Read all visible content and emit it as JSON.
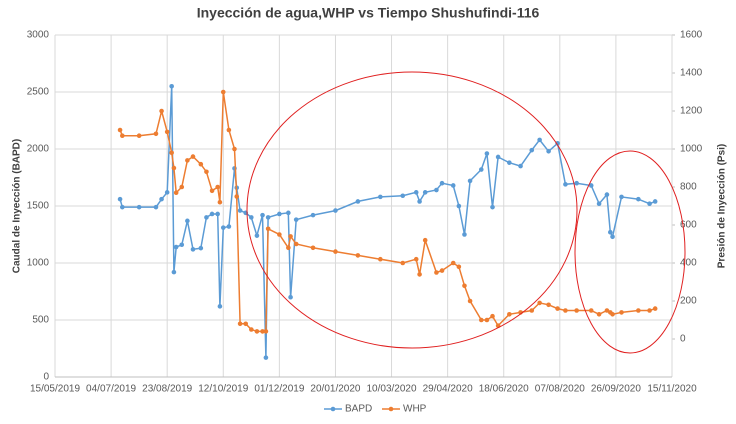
{
  "chart_data": {
    "type": "line",
    "title": "Inyección de agua,WHP vs Tiempo Shushufindi-116",
    "y_label": "Caudal de Inyección (BAPD)",
    "y2_label": "Presión de Inyección (Psi)",
    "x": [
      "2019-07-12",
      "2019-07-14",
      "2019-07-29",
      "2019-08-13",
      "2019-08-18",
      "2019-08-23",
      "2019-08-27",
      "2019-08-29",
      "2019-08-31",
      "2019-09-05",
      "2019-09-10",
      "2019-09-15",
      "2019-09-22",
      "2019-09-27",
      "2019-10-02",
      "2019-10-07",
      "2019-10-09",
      "2019-10-12",
      "2019-10-17",
      "2019-10-22",
      "2019-10-24",
      "2019-10-27",
      "2019-11-01",
      "2019-11-06",
      "2019-11-11",
      "2019-11-16",
      "2019-11-19",
      "2019-11-21",
      "2019-12-01",
      "2019-12-09",
      "2019-12-11",
      "2019-12-16",
      "2019-12-31",
      "2020-01-20",
      "2020-02-09",
      "2020-02-29",
      "2020-03-20",
      "2020-04-01",
      "2020-04-04",
      "2020-04-09",
      "2020-04-19",
      "2020-04-24",
      "2020-05-04",
      "2020-05-09",
      "2020-05-14",
      "2020-05-19",
      "2020-05-29",
      "2020-06-03",
      "2020-06-08",
      "2020-06-13",
      "2020-06-23",
      "2020-07-03",
      "2020-07-13",
      "2020-07-20",
      "2020-07-28",
      "2020-08-05",
      "2020-08-12",
      "2020-08-22",
      "2020-09-04",
      "2020-09-11",
      "2020-09-18",
      "2020-09-21",
      "2020-09-23",
      "2020-10-01",
      "2020-10-16",
      "2020-10-26",
      "2020-10-31"
    ],
    "series": [
      {
        "name": "BAPD",
        "color": "#5b9bd5",
        "values": [
          1560,
          1490,
          1490,
          1490,
          1560,
          1620,
          2550,
          920,
          1140,
          1160,
          1370,
          1120,
          1130,
          1400,
          1430,
          1430,
          620,
          1310,
          1320,
          1830,
          1660,
          1460,
          1440,
          1400,
          1240,
          1420,
          170,
          1400,
          1430,
          1440,
          700,
          1380,
          1420,
          1460,
          1540,
          1580,
          1590,
          1620,
          1540,
          1620,
          1640,
          1700,
          1680,
          1500,
          1250,
          1720,
          1820,
          1960,
          1490,
          1930,
          1880,
          1850,
          1990,
          2080,
          1980,
          2050,
          1690,
          1700,
          1680,
          1520,
          1600,
          1270,
          1230,
          1580,
          1560,
          1520,
          1540
        ]
      },
      {
        "name": "WHP",
        "color": "#ed7d31",
        "axis": "y2",
        "values": [
          1100,
          1070,
          1070,
          1080,
          1200,
          1090,
          980,
          900,
          770,
          800,
          940,
          960,
          920,
          880,
          780,
          800,
          720,
          1300,
          1100,
          1000,
          750,
          80,
          80,
          50,
          40,
          40,
          40,
          580,
          550,
          480,
          540,
          500,
          480,
          460,
          440,
          420,
          400,
          420,
          340,
          520,
          350,
          360,
          400,
          380,
          280,
          200,
          100,
          100,
          120,
          70,
          130,
          140,
          150,
          190,
          180,
          160,
          150,
          150,
          150,
          130,
          150,
          140,
          130,
          140,
          150,
          150,
          160
        ]
      }
    ],
    "xlim": [
      "2019-05-15",
      "2020-11-15"
    ],
    "xticks": [
      {
        "value": "2019-05-15",
        "label": "15/05/2019"
      },
      {
        "value": "2019-07-04",
        "label": "04/07/2019"
      },
      {
        "value": "2019-08-23",
        "label": "23/08/2019"
      },
      {
        "value": "2019-10-12",
        "label": "12/10/2019"
      },
      {
        "value": "2019-12-01",
        "label": "01/12/2019"
      },
      {
        "value": "2020-01-20",
        "label": "20/01/2020"
      },
      {
        "value": "2020-03-10",
        "label": "10/03/2020"
      },
      {
        "value": "2020-04-29",
        "label": "29/04/2020"
      },
      {
        "value": "2020-06-18",
        "label": "18/06/2020"
      },
      {
        "value": "2020-08-07",
        "label": "07/08/2020"
      },
      {
        "value": "2020-09-26",
        "label": "26/09/2020"
      },
      {
        "value": "2020-11-15",
        "label": "15/11/2020"
      }
    ],
    "ylim": [
      0,
      3000
    ],
    "yticks": [
      0,
      500,
      1000,
      1500,
      2000,
      2500,
      3000
    ],
    "y2lim": [
      -200,
      1600
    ],
    "y2ticks": [
      0,
      200,
      400,
      600,
      800,
      1000,
      1200,
      1400,
      1600
    ],
    "grid": true,
    "legend": "bottom"
  }
}
